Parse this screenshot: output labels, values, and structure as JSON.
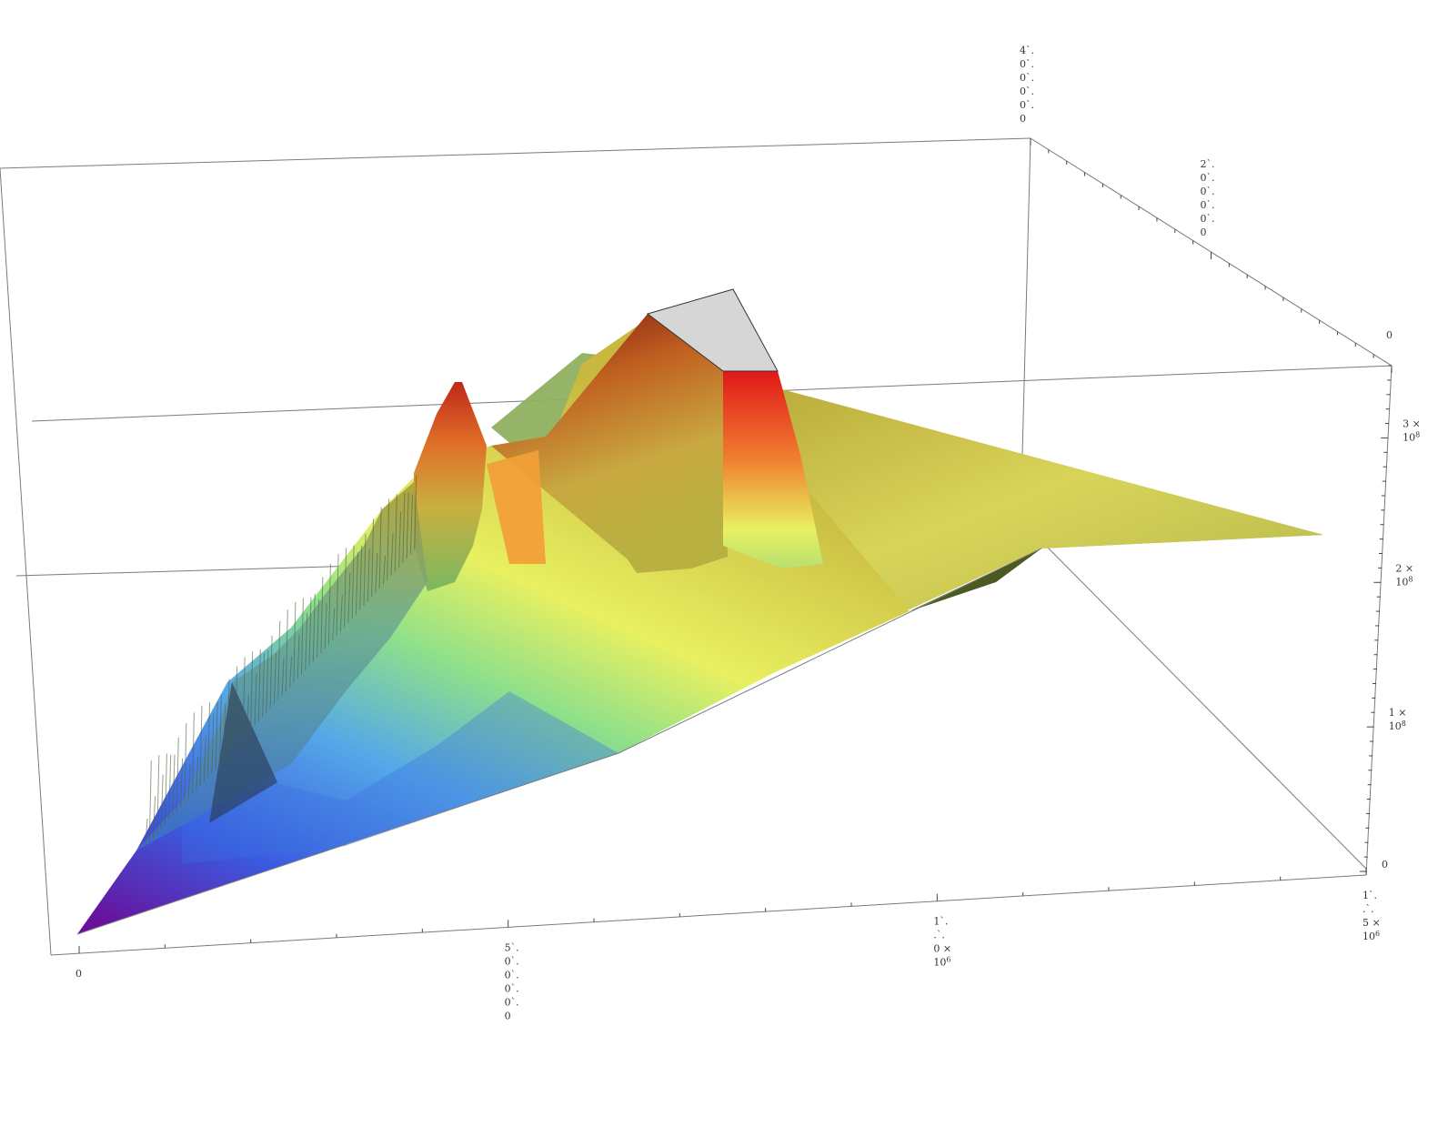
{
  "chart_data": {
    "type": "surface3d",
    "title": "",
    "x_axis": {
      "ticks": [
        {
          "value": 0,
          "label_lines": [
            "0"
          ]
        },
        {
          "value": 500000,
          "label_lines": [
            "5`.",
            "0`.",
            "0`.",
            "0`.",
            "0`.",
            "0"
          ]
        },
        {
          "value": 1000000,
          "label_lines": [
            "1`.",
            ".`.",
            "0 ×",
            "10^6"
          ]
        },
        {
          "value": 1500000,
          "label_lines": [
            "1`.",
            ".`.",
            "5 ×",
            "10^6"
          ]
        }
      ],
      "range": [
        0,
        1500000
      ]
    },
    "y_axis": {
      "ticks": [
        {
          "value": 0,
          "label_lines": [
            "0"
          ]
        },
        {
          "value": 200000,
          "label_lines": [
            "2`.",
            "0`.",
            "0`.",
            "0`.",
            "0`.",
            "0"
          ]
        },
        {
          "value": 400000,
          "label_lines": [
            "4`.",
            "0`.",
            "0`.",
            "0`.",
            "0`.",
            "0"
          ]
        }
      ],
      "range": [
        0,
        400000
      ]
    },
    "z_axis": {
      "ticks": [
        {
          "value": 0,
          "label_lines": [
            "0"
          ]
        },
        {
          "value": 100000000,
          "label_lines": [
            "1 ×",
            "10^8"
          ]
        },
        {
          "value": 200000000,
          "label_lines": [
            "2 ×",
            "10^8"
          ]
        },
        {
          "value": 300000000,
          "label_lines": [
            "3 ×",
            "10^8"
          ]
        }
      ],
      "range": [
        0,
        350000000
      ]
    },
    "surface_peaks": [
      {
        "x": 420000,
        "y": 250000,
        "z": 340000000
      },
      {
        "x": 700000,
        "y": 230000,
        "z": 380000000
      },
      {
        "x": 820000,
        "y": 210000,
        "z": 330000000
      }
    ],
    "colormap": [
      "#6a0f9a",
      "#3a5be0",
      "#55a8e8",
      "#8ee08a",
      "#e8f060",
      "#e8a030",
      "#e02020",
      "#8a1010"
    ],
    "clipped_color": "#d6d6d6",
    "grid": false,
    "box": true
  }
}
